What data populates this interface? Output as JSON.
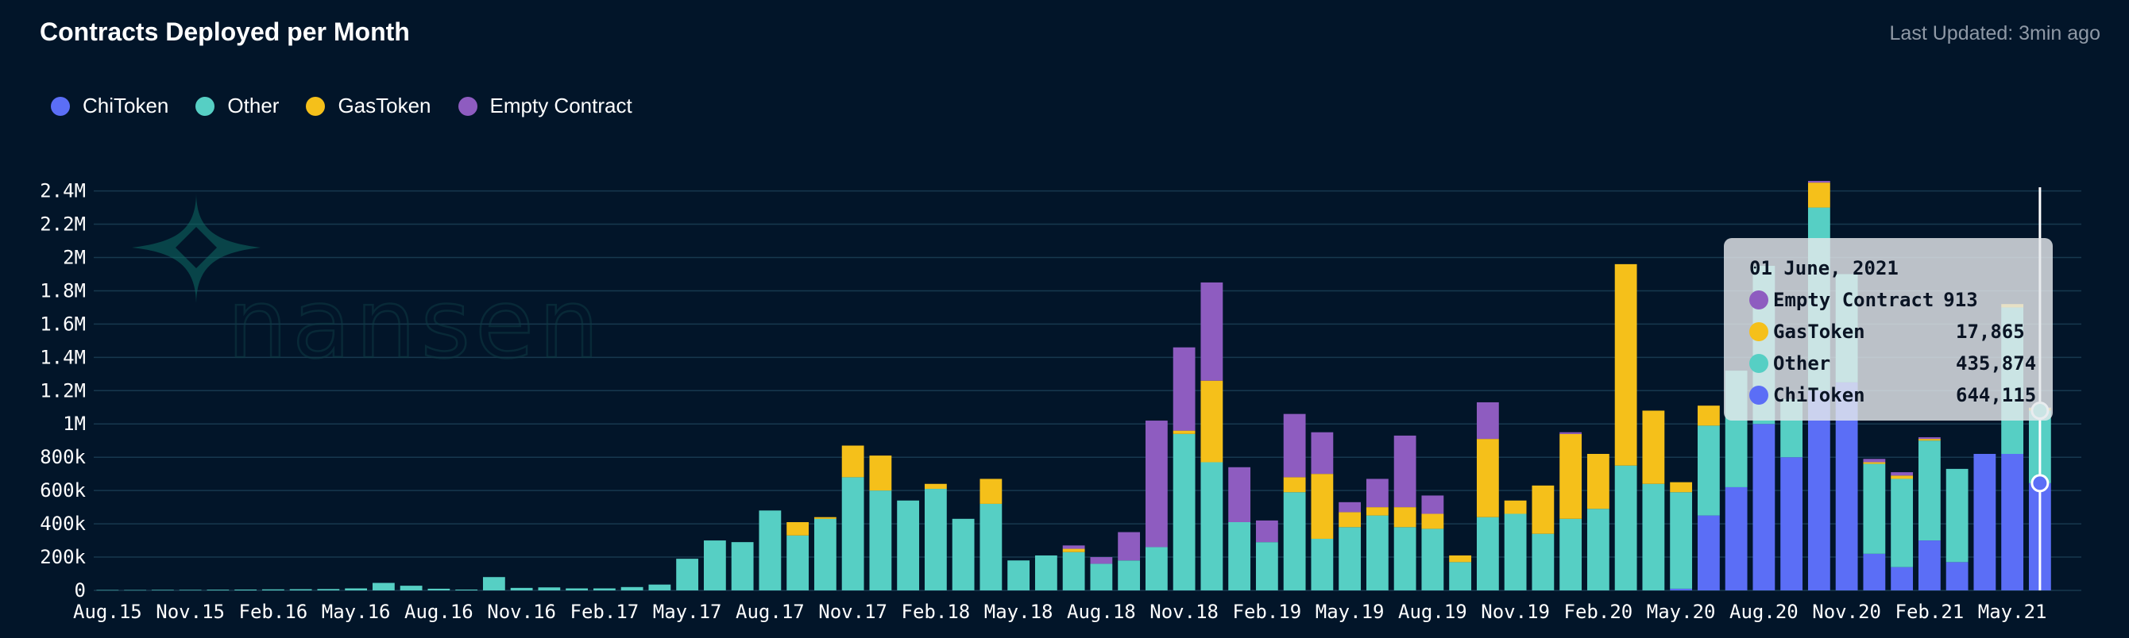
{
  "header": {
    "title": "Contracts Deployed per Month",
    "last_updated": "Last Updated: 3min ago"
  },
  "legend": [
    {
      "label": "ChiToken",
      "color": "#5b6ef6"
    },
    {
      "label": "Other",
      "color": "#56cfc4"
    },
    {
      "label": "GasToken",
      "color": "#f5c01a"
    },
    {
      "label": "Empty Contract",
      "color": "#8e5cc0"
    }
  ],
  "watermark": {
    "text": "nansen",
    "icon": "nansen-logo-icon"
  },
  "tooltip": {
    "date": "01 June, 2021",
    "rows": [
      {
        "name": "Empty Contract",
        "value": "913",
        "color": "#8e5cc0"
      },
      {
        "name": "GasToken",
        "value": "17,865",
        "color": "#f5c01a"
      },
      {
        "name": "Other",
        "value": "435,874",
        "color": "#56cfc4"
      },
      {
        "name": "ChiToken",
        "value": "644,115",
        "color": "#5b6ef6"
      }
    ]
  },
  "chart_data": {
    "type": "bar",
    "stacked": true,
    "title": "Contracts Deployed per Month",
    "xlabel": "",
    "ylabel": "",
    "ylim": [
      0,
      2460000
    ],
    "yticks": [
      0,
      200000,
      400000,
      600000,
      800000,
      1000000,
      1200000,
      1400000,
      1600000,
      1800000,
      2000000,
      2200000,
      2400000
    ],
    "ytick_labels": [
      "0",
      "200k",
      "400k",
      "600k",
      "800k",
      "1M",
      "1.2M",
      "1.4M",
      "1.6M",
      "1.8M",
      "2M",
      "2.2M",
      "2.4M"
    ],
    "grid": true,
    "legend_position": "top-left",
    "x_tick_labels": [
      {
        "index": 0,
        "label": "Aug.15"
      },
      {
        "index": 3,
        "label": "Nov.15"
      },
      {
        "index": 6,
        "label": "Feb.16"
      },
      {
        "index": 9,
        "label": "May.16"
      },
      {
        "index": 12,
        "label": "Aug.16"
      },
      {
        "index": 15,
        "label": "Nov.16"
      },
      {
        "index": 18,
        "label": "Feb.17"
      },
      {
        "index": 21,
        "label": "May.17"
      },
      {
        "index": 24,
        "label": "Aug.17"
      },
      {
        "index": 27,
        "label": "Nov.17"
      },
      {
        "index": 30,
        "label": "Feb.18"
      },
      {
        "index": 33,
        "label": "May.18"
      },
      {
        "index": 36,
        "label": "Aug.18"
      },
      {
        "index": 39,
        "label": "Nov.18"
      },
      {
        "index": 42,
        "label": "Feb.19"
      },
      {
        "index": 45,
        "label": "May.19"
      },
      {
        "index": 48,
        "label": "Aug.19"
      },
      {
        "index": 51,
        "label": "Nov.19"
      },
      {
        "index": 54,
        "label": "Feb.20"
      },
      {
        "index": 57,
        "label": "May.20"
      },
      {
        "index": 60,
        "label": "Aug.20"
      },
      {
        "index": 63,
        "label": "Nov.20"
      },
      {
        "index": 66,
        "label": "Feb.21"
      },
      {
        "index": 69,
        "label": "May.21"
      }
    ],
    "categories": [
      "2015-08",
      "2015-09",
      "2015-10",
      "2015-11",
      "2015-12",
      "2016-01",
      "2016-02",
      "2016-03",
      "2016-04",
      "2016-05",
      "2016-06",
      "2016-07",
      "2016-08",
      "2016-09",
      "2016-10",
      "2016-11",
      "2016-12",
      "2017-01",
      "2017-02",
      "2017-03",
      "2017-04",
      "2017-05",
      "2017-06",
      "2017-07",
      "2017-08",
      "2017-09",
      "2017-10",
      "2017-11",
      "2017-12",
      "2018-01",
      "2018-02",
      "2018-03",
      "2018-04",
      "2018-05",
      "2018-06",
      "2018-07",
      "2018-08",
      "2018-09",
      "2018-10",
      "2018-11",
      "2018-12",
      "2019-01",
      "2019-02",
      "2019-03",
      "2019-04",
      "2019-05",
      "2019-06",
      "2019-07",
      "2019-08",
      "2019-09",
      "2019-10",
      "2019-11",
      "2019-12",
      "2020-01",
      "2020-02",
      "2020-03",
      "2020-04",
      "2020-05",
      "2020-06",
      "2020-07",
      "2020-08",
      "2020-09",
      "2020-10",
      "2020-11",
      "2020-12",
      "2021-01",
      "2021-02",
      "2021-03",
      "2021-04",
      "2021-05",
      "2021-06",
      "2021-07"
    ],
    "series": [
      {
        "name": "ChiToken",
        "color": "#5b6ef6",
        "values": [
          0,
          0,
          0,
          0,
          0,
          0,
          0,
          0,
          0,
          0,
          0,
          0,
          0,
          0,
          0,
          0,
          0,
          0,
          0,
          0,
          0,
          0,
          0,
          0,
          0,
          0,
          0,
          0,
          0,
          0,
          0,
          0,
          0,
          0,
          0,
          0,
          0,
          0,
          0,
          0,
          0,
          0,
          0,
          0,
          0,
          0,
          0,
          0,
          0,
          0,
          0,
          0,
          0,
          0,
          0,
          0,
          0,
          10000,
          450000,
          620000,
          1000000,
          800000,
          1200000,
          1250000,
          220000,
          140000,
          300000,
          170000,
          820000,
          820000,
          644115,
          0
        ]
      },
      {
        "name": "Other",
        "color": "#56cfc4",
        "values": [
          2000,
          2000,
          3000,
          3000,
          4000,
          5000,
          6000,
          7000,
          8000,
          12000,
          45000,
          28000,
          10000,
          5000,
          80000,
          15000,
          18000,
          12000,
          12000,
          20000,
          35000,
          190000,
          300000,
          290000,
          480000,
          330000,
          430000,
          680000,
          600000,
          540000,
          610000,
          430000,
          520000,
          180000,
          210000,
          230000,
          160000,
          180000,
          260000,
          940000,
          770000,
          410000,
          290000,
          590000,
          310000,
          380000,
          450000,
          380000,
          370000,
          170000,
          440000,
          460000,
          340000,
          430000,
          490000,
          750000,
          640000,
          580000,
          540000,
          700000,
          950000,
          350000,
          1100000,
          650000,
          540000,
          530000,
          600000,
          560000,
          0,
          880000,
          435874,
          0
        ]
      },
      {
        "name": "GasToken",
        "color": "#f5c01a",
        "values": [
          0,
          0,
          0,
          0,
          0,
          0,
          0,
          0,
          0,
          0,
          0,
          0,
          0,
          0,
          0,
          0,
          0,
          0,
          0,
          0,
          0,
          0,
          0,
          0,
          0,
          80000,
          10000,
          190000,
          210000,
          0,
          30000,
          0,
          150000,
          0,
          0,
          20000,
          0,
          0,
          0,
          20000,
          490000,
          0,
          0,
          90000,
          390000,
          90000,
          50000,
          120000,
          90000,
          40000,
          470000,
          80000,
          290000,
          510000,
          330000,
          1210000,
          440000,
          60000,
          120000,
          0,
          0,
          0,
          150000,
          0,
          10000,
          20000,
          10000,
          0,
          0,
          20000,
          17865,
          0
        ]
      },
      {
        "name": "Empty Contract",
        "color": "#8e5cc0",
        "values": [
          0,
          0,
          0,
          0,
          0,
          0,
          0,
          0,
          0,
          0,
          0,
          0,
          0,
          0,
          0,
          0,
          0,
          0,
          0,
          0,
          0,
          0,
          0,
          0,
          0,
          0,
          0,
          0,
          0,
          0,
          0,
          0,
          0,
          0,
          0,
          20000,
          40000,
          170000,
          760000,
          500000,
          590000,
          330000,
          130000,
          380000,
          250000,
          60000,
          170000,
          430000,
          110000,
          0,
          220000,
          0,
          0,
          10000,
          0,
          0,
          0,
          0,
          0,
          0,
          0,
          0,
          10000,
          0,
          20000,
          20000,
          10000,
          0,
          0,
          0,
          913,
          0
        ]
      }
    ],
    "hover_index": 70,
    "hover_date": "01 June, 2021"
  }
}
